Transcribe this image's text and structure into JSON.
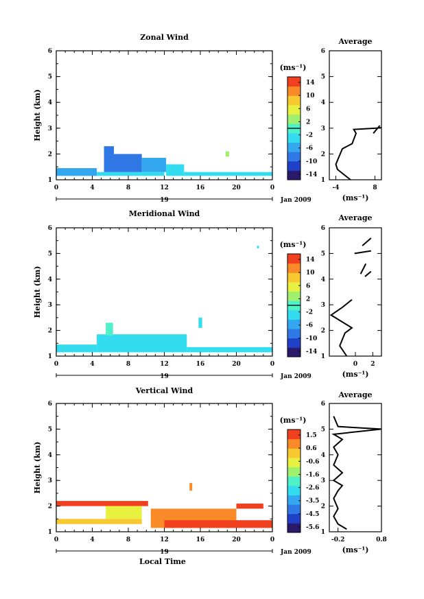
{
  "colorbar_ramp": [
    "#2b1a6b",
    "#2040c8",
    "#2f78e6",
    "#34a8ee",
    "#34dcf0",
    "#50f0c8",
    "#a0f070",
    "#e8f040",
    "#f8c830",
    "#f88a28",
    "#f04020"
  ],
  "footer": {
    "xlabel": "Local Time"
  },
  "chart_data": [
    {
      "type": "heatmap",
      "title": "Zonal Wind",
      "ylabel": "Height (km)",
      "yticks": [
        "1",
        "2",
        "3",
        "4",
        "5",
        "6"
      ],
      "ylim": [
        1,
        6
      ],
      "xticks": [
        "0",
        "4",
        "8",
        "12",
        "16",
        "20",
        "0"
      ],
      "xlim": [
        0,
        24
      ],
      "date_tick": "19",
      "date_label": "Jan 2009",
      "colorbar": {
        "unit": "(ms⁻¹)",
        "ticks": [
          "14",
          "10",
          "6",
          "2",
          "-2",
          "-6",
          "-10",
          "-14"
        ],
        "zero_level": "0"
      },
      "cells": [
        {
          "x0": 0,
          "x1": 4.5,
          "y0": 1.15,
          "y1": 1.45,
          "v": -4
        },
        {
          "x0": 4.5,
          "x1": 12,
          "y0": 1.15,
          "y1": 1.3,
          "v": -3
        },
        {
          "x0": 5.3,
          "x1": 6.4,
          "y0": 1.3,
          "y1": 2.3,
          "v": -8
        },
        {
          "x0": 6.4,
          "x1": 9.5,
          "y0": 1.3,
          "y1": 2.0,
          "v": -7
        },
        {
          "x0": 9.5,
          "x1": 12.2,
          "y0": 1.3,
          "y1": 1.85,
          "v": -6
        },
        {
          "x0": 12.2,
          "x1": 14.2,
          "y0": 1.15,
          "y1": 1.6,
          "v": -3
        },
        {
          "x0": 14.2,
          "x1": 24,
          "y0": 1.15,
          "y1": 1.3,
          "v": -2
        },
        {
          "x0": 18.8,
          "x1": 19.2,
          "y0": 1.9,
          "y1": 2.1,
          "v": 2
        }
      ],
      "average": {
        "title": "Average",
        "unit": "(ms⁻¹)",
        "xticks": [
          "-4",
          "8"
        ],
        "xlim": [
          -6,
          10
        ],
        "profile": [
          [
            0.5,
            1.0
          ],
          [
            -1.5,
            1.2
          ],
          [
            -3.5,
            1.4
          ],
          [
            -4.0,
            1.6
          ],
          [
            -3.0,
            1.9
          ],
          [
            -2.0,
            2.2
          ],
          [
            1.0,
            2.4
          ],
          [
            2.2,
            2.8
          ],
          [
            1.5,
            2.95
          ],
          [
            8.5,
            3.0
          ],
          [
            10,
            3.02
          ]
        ],
        "segments": [
          [
            [
              7.5,
              2.8
            ],
            [
              9.5,
              3.1
            ]
          ]
        ]
      }
    },
    {
      "type": "heatmap",
      "title": "Meridional Wind",
      "ylabel": "Height (km)",
      "yticks": [
        "1",
        "2",
        "3",
        "4",
        "5",
        "6"
      ],
      "ylim": [
        1,
        6
      ],
      "xticks": [
        "0",
        "4",
        "8",
        "12",
        "16",
        "20",
        "0"
      ],
      "xlim": [
        0,
        24
      ],
      "date_tick": "19",
      "date_label": "Jan 2009",
      "colorbar": {
        "unit": "(ms⁻¹)",
        "ticks": [
          "14",
          "10",
          "6",
          "2",
          "-2",
          "-6",
          "-10",
          "-14"
        ],
        "zero_level": "0"
      },
      "cells": [
        {
          "x0": 0,
          "x1": 4.5,
          "y0": 1.15,
          "y1": 1.45,
          "v": -3
        },
        {
          "x0": 4.5,
          "x1": 14.5,
          "y0": 1.15,
          "y1": 1.85,
          "v": -3
        },
        {
          "x0": 5.5,
          "x1": 6.3,
          "y0": 1.8,
          "y1": 2.3,
          "v": 1
        },
        {
          "x0": 14.5,
          "x1": 24,
          "y0": 1.15,
          "y1": 1.35,
          "v": -2
        },
        {
          "x0": 15.8,
          "x1": 16.2,
          "y0": 2.1,
          "y1": 2.5,
          "v": -3
        },
        {
          "x0": 22.3,
          "x1": 22.5,
          "y0": 5.2,
          "y1": 5.3,
          "v": -3
        }
      ],
      "average": {
        "title": "Average",
        "unit": "(ms⁻¹)",
        "xticks": [
          "0",
          "2"
        ],
        "xlim": [
          -3,
          3
        ],
        "profile": [
          [
            -1.0,
            1.0
          ],
          [
            -1.8,
            1.4
          ],
          [
            -1.2,
            1.9
          ],
          [
            -0.4,
            2.1
          ],
          [
            -2.8,
            2.6
          ],
          [
            -1.5,
            2.9
          ],
          [
            -0.4,
            3.2
          ]
        ],
        "segments": [
          [
            [
              -0.1,
              5.0
            ],
            [
              1.8,
              5.1
            ]
          ],
          [
            [
              0.8,
              5.3
            ],
            [
              1.8,
              5.6
            ]
          ],
          [
            [
              0.6,
              4.2
            ],
            [
              1.2,
              4.6
            ]
          ],
          [
            [
              1.1,
              4.1
            ],
            [
              1.8,
              4.3
            ]
          ]
        ]
      }
    },
    {
      "type": "heatmap",
      "title": "Vertical Wind",
      "ylabel": "Height (km)",
      "yticks": [
        "1",
        "2",
        "3",
        "4",
        "5",
        "6"
      ],
      "ylim": [
        1,
        6
      ],
      "xticks": [
        "0",
        "4",
        "8",
        "12",
        "16",
        "20",
        "0"
      ],
      "xlim": [
        0,
        24
      ],
      "date_tick": "19",
      "date_label": "Jan 2009",
      "colorbar": {
        "unit": "(ms⁻¹)",
        "ticks": [
          "1.5",
          "0.6",
          "-0.6",
          "-1.6",
          "-2.6",
          "-3.5",
          "-4.5",
          "-5.6"
        ]
      },
      "cells": [
        {
          "x0": 0,
          "x1": 10.2,
          "y0": 2.0,
          "y1": 2.2,
          "v": 0.9
        },
        {
          "x0": 0,
          "x1": 9.5,
          "y0": 1.3,
          "y1": 1.5,
          "v": -0.4
        },
        {
          "x0": 5.5,
          "x1": 9.5,
          "y0": 1.5,
          "y1": 2.0,
          "v": -0.5
        },
        {
          "x0": 10.5,
          "x1": 20,
          "y0": 1.15,
          "y1": 1.9,
          "v": 0.7
        },
        {
          "x0": 12,
          "x1": 20,
          "y0": 1.15,
          "y1": 1.45,
          "v": 1.1
        },
        {
          "x0": 20,
          "x1": 24,
          "y0": 1.15,
          "y1": 1.45,
          "v": 0.9
        },
        {
          "x0": 20,
          "x1": 23,
          "y0": 1.9,
          "y1": 2.1,
          "v": 0.9
        },
        {
          "x0": 14.8,
          "x1": 15.1,
          "y0": 2.6,
          "y1": 2.9,
          "v": 0.6
        }
      ],
      "average": {
        "title": "Average",
        "unit": "(ms⁻¹)",
        "xticks": [
          "-0.2",
          "0.8"
        ],
        "xlim": [
          -0.4,
          0.8
        ],
        "profile": [
          [
            0.0,
            1.1
          ],
          [
            -0.2,
            1.3
          ],
          [
            -0.3,
            1.6
          ],
          [
            -0.2,
            1.9
          ],
          [
            -0.3,
            2.3
          ],
          [
            -0.2,
            2.6
          ],
          [
            -0.1,
            2.8
          ],
          [
            -0.3,
            3.0
          ],
          [
            -0.1,
            3.3
          ],
          [
            -0.3,
            3.6
          ],
          [
            -0.2,
            4.0
          ],
          [
            -0.3,
            4.3
          ],
          [
            -0.1,
            4.6
          ],
          [
            -0.3,
            4.8
          ],
          [
            0.8,
            5.0
          ],
          [
            -0.2,
            5.1
          ],
          [
            -0.3,
            5.5
          ]
        ]
      }
    }
  ]
}
